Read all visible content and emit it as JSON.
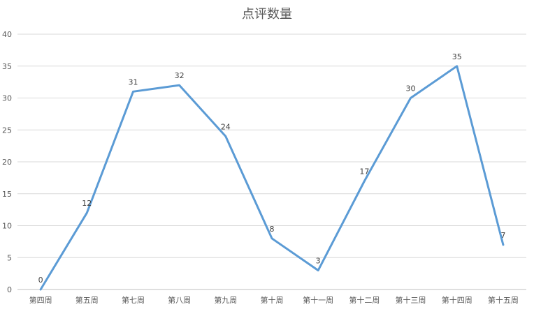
{
  "chart_data": {
    "type": "line",
    "title": "点评数量",
    "categories": [
      "第四周",
      "第五周",
      "第七周",
      "第八周",
      "第九周",
      "第十周",
      "第十一周",
      "第十二周",
      "第十三周",
      "第十四周",
      "第十五周"
    ],
    "series": [
      {
        "values": [
          0,
          12,
          31,
          32,
          24,
          8,
          3,
          17,
          30,
          35,
          7
        ]
      }
    ],
    "ylim": [
      0,
      40
    ],
    "yticks": [
      0,
      5,
      10,
      15,
      20,
      25,
      30,
      35,
      40
    ],
    "grid": true,
    "legend": "none",
    "line_color": "#5b9bd5"
  }
}
